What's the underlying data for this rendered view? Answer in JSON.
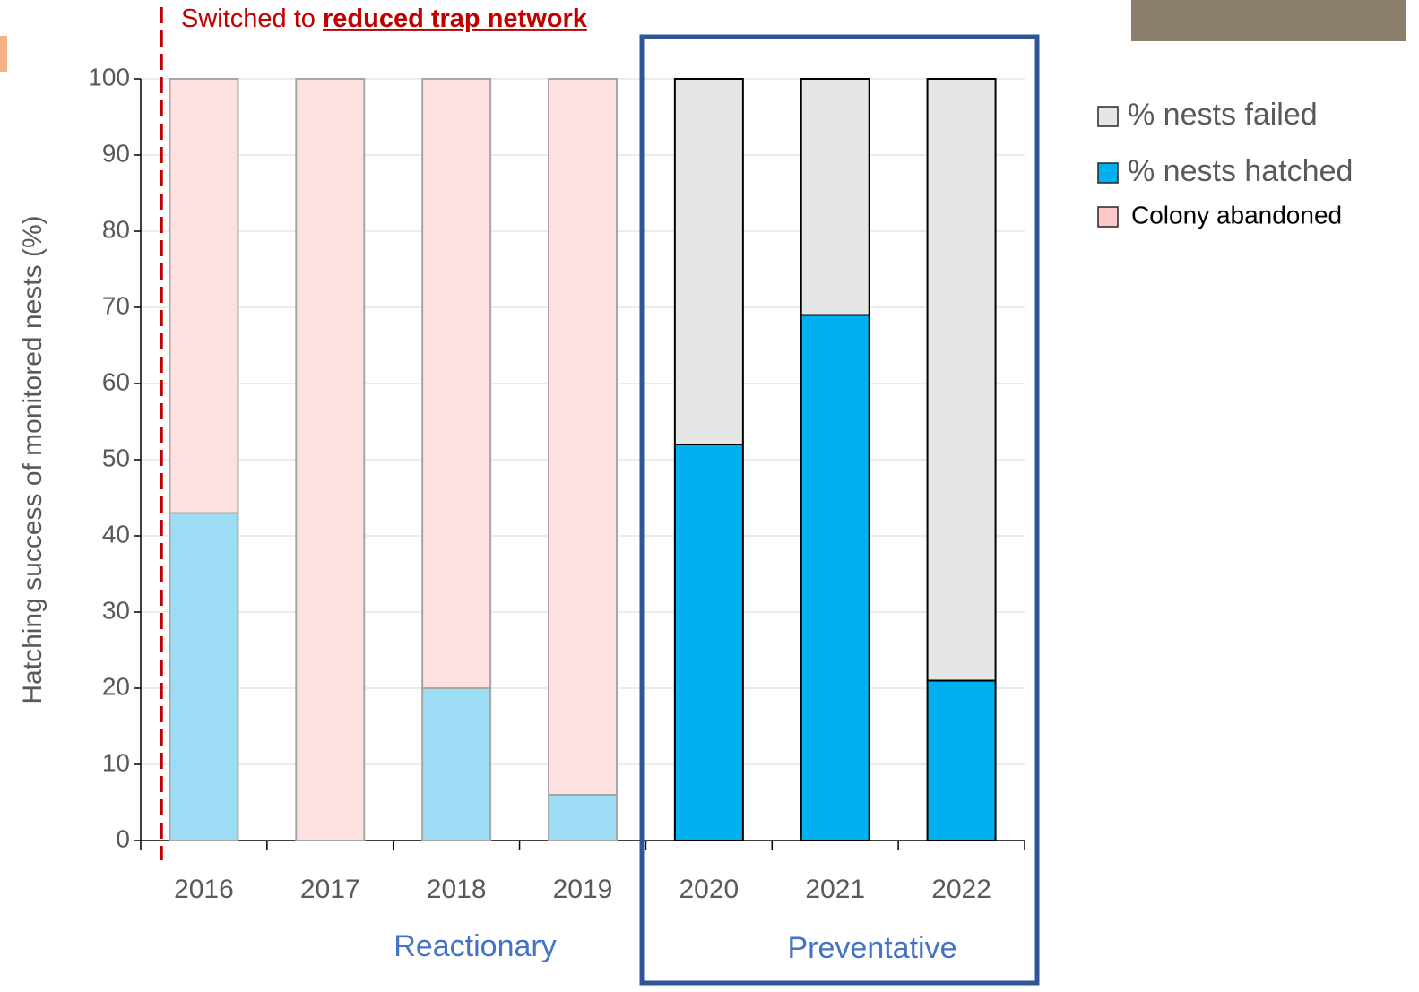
{
  "chart_data": {
    "type": "stacked_bar",
    "y_label": "Hatching success of monitored nests (%)",
    "categories": [
      "2016",
      "2017",
      "2018",
      "2019",
      "2020",
      "2021",
      "2022"
    ],
    "series": [
      {
        "name": "% nests hatched",
        "color": "#00b0f0",
        "colors": [
          "#9ddcf5",
          "#9ddcf5",
          "#9ddcf5",
          "#9ddcf5",
          "#00b0f0",
          "#00b0f0",
          "#00b0f0"
        ],
        "values": [
          43,
          0,
          20,
          6,
          52,
          69,
          21
        ]
      },
      {
        "name": "% nests failed",
        "color": "#e6e6e6",
        "values": [
          0,
          0,
          0,
          0,
          48,
          31,
          79
        ]
      },
      {
        "name": "Colony abandoned",
        "color": "#fde0e0",
        "values": [
          57,
          100,
          80,
          94,
          0,
          0,
          0
        ]
      }
    ],
    "ylim": [
      0,
      100
    ],
    "yticks": [
      0,
      10,
      20,
      30,
      40,
      50,
      60,
      70,
      80,
      90,
      100
    ],
    "grid": true,
    "annotations": {
      "switch_prefix": "Switched to ",
      "switch_emph": "reduced trap network",
      "group_left": "Reactionary",
      "group_right": "Preventative"
    }
  }
}
